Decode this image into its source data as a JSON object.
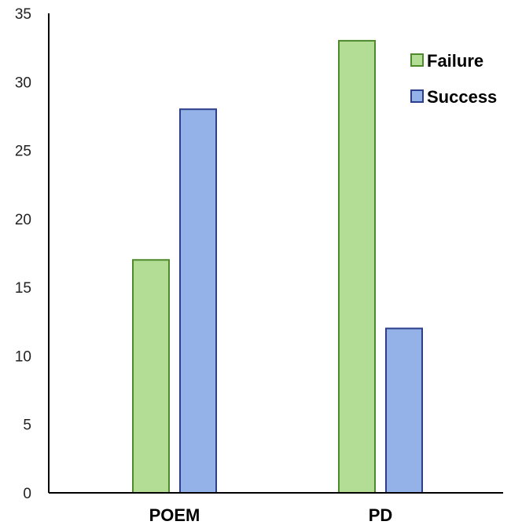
{
  "chart_data": {
    "type": "bar",
    "categories": [
      "POEM",
      "PD"
    ],
    "series": [
      {
        "name": "Failure",
        "values": [
          17,
          33
        ],
        "color": "#b3dc95",
        "stroke": "#4e8a2c"
      },
      {
        "name": "Success",
        "values": [
          28,
          12
        ],
        "color": "#94b1e8",
        "stroke": "#2b3f8a"
      }
    ],
    "y_ticks": [
      "0",
      "5",
      "10",
      "15",
      "20",
      "25",
      "30",
      "35"
    ],
    "ylim": [
      0,
      35
    ],
    "title": "",
    "xlabel": "",
    "ylabel": "",
    "grid": false,
    "legend_position": "top-right"
  }
}
